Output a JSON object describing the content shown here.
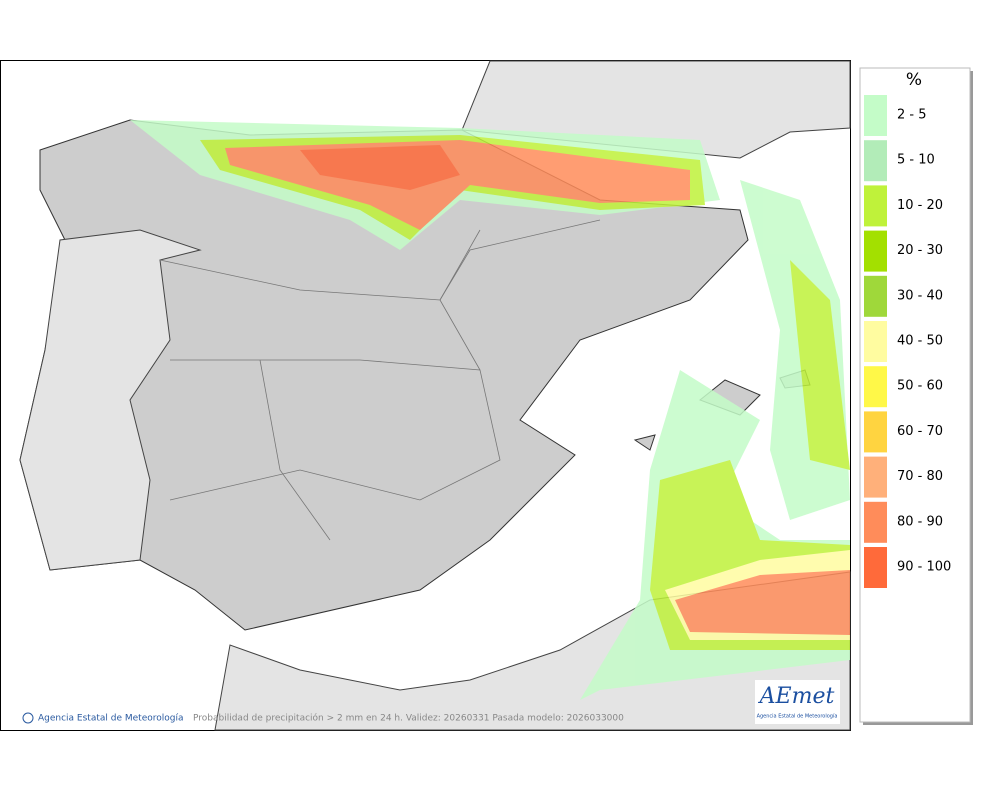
{
  "map": {
    "legend": {
      "title": "%",
      "entries": [
        {
          "label": "2 - 5",
          "color": "#c4fcc8"
        },
        {
          "label": "5 - 10",
          "color": "#b2ecb8"
        },
        {
          "label": "10 - 20",
          "color": "#bff23a"
        },
        {
          "label": "20 - 30",
          "color": "#a3e000"
        },
        {
          "label": "30 - 40",
          "color": "#9fd83a"
        },
        {
          "label": "40 - 50",
          "color": "#fffca0"
        },
        {
          "label": "50 - 60",
          "color": "#fff848"
        },
        {
          "label": "60 - 70",
          "color": "#ffd440"
        },
        {
          "label": "70 - 80",
          "color": "#ffb07a"
        },
        {
          "label": "80 - 90",
          "color": "#ff8c5a"
        },
        {
          "label": "90 - 100",
          "color": "#ff6a3a"
        }
      ]
    },
    "footer": {
      "credit": "Agencia Estatal de Meteorología",
      "caption": "Probabilidad de precipitación > 2 mm en 24 h. Validez: 20260331 Pasada modelo: 2026033000"
    },
    "logo": {
      "name": "AEmet",
      "subtitle": "Agencia Estatal de Meteorología"
    }
  }
}
